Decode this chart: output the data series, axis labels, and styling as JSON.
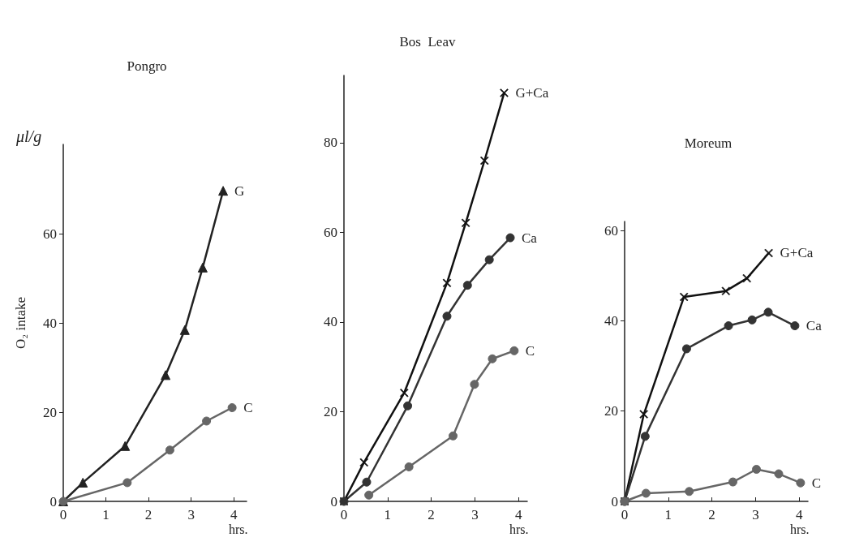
{
  "chart_data": [
    {
      "type": "line",
      "title": "Pongro",
      "xlabel": "hrs.",
      "ylabel": "O₂ intake",
      "annotations": [
        "μl/g"
      ],
      "xlim": [
        0,
        4.3
      ],
      "xticks": [
        0,
        1,
        2,
        3,
        4
      ],
      "ylim": [
        0,
        80
      ],
      "yticks": [
        0,
        20,
        40,
        60
      ],
      "grid": false,
      "legend": false,
      "series": [
        {
          "name": "G",
          "color": "#222222",
          "marker": "triangle",
          "x": [
            0,
            0.46,
            1.45,
            2.4,
            2.85,
            3.27,
            3.75
          ],
          "values": [
            0,
            4.2,
            12.4,
            28.3,
            38.4,
            52.4,
            69.6
          ]
        },
        {
          "name": "C",
          "color": "#666666",
          "marker": "circle",
          "x": [
            0,
            1.5,
            2.5,
            3.36,
            3.96
          ],
          "values": [
            0,
            4.2,
            11.5,
            18,
            21
          ]
        }
      ]
    },
    {
      "type": "line",
      "title": "Bos  Leav",
      "xlabel": "hrs.",
      "xlim": [
        0,
        4.2
      ],
      "xticks": [
        0,
        1,
        2,
        3,
        4
      ],
      "ylim": [
        0,
        95
      ],
      "yticks": [
        0,
        20,
        40,
        60,
        80
      ],
      "grid": false,
      "legend": false,
      "series": [
        {
          "name": "G+Ca",
          "color": "#111111",
          "marker": "cross",
          "x": [
            0,
            0.46,
            1.38,
            2.36,
            2.79,
            3.22,
            3.67
          ],
          "values": [
            0,
            8.7,
            24.2,
            48.7,
            62.1,
            76,
            91.1
          ]
        },
        {
          "name": "Ca",
          "color": "#333333",
          "marker": "circle",
          "x": [
            0,
            0.52,
            1.46,
            2.36,
            2.83,
            3.33,
            3.81
          ],
          "values": [
            0,
            4.3,
            21.3,
            41.3,
            48.2,
            53.9,
            58.8
          ]
        },
        {
          "name": "C",
          "color": "#666666",
          "marker": "circle",
          "x": [
            0.57,
            1.49,
            2.5,
            2.99,
            3.4,
            3.9
          ],
          "values": [
            1.4,
            7.7,
            14.6,
            26.1,
            31.8,
            33.6
          ]
        }
      ]
    },
    {
      "type": "line",
      "title": "Moreum",
      "xlabel": "hrs.",
      "xlim": [
        0,
        4.2
      ],
      "xticks": [
        0,
        1,
        2,
        3,
        4
      ],
      "ylim": [
        0,
        62
      ],
      "yticks": [
        0,
        20,
        40,
        60
      ],
      "grid": false,
      "legend": false,
      "series": [
        {
          "name": "G+Ca",
          "color": "#111111",
          "marker": "cross",
          "x": [
            0,
            0.44,
            1.36,
            2.32,
            2.8,
            3.3
          ],
          "values": [
            0,
            19.3,
            45.3,
            46.6,
            49.4,
            55
          ]
        },
        {
          "name": "Ca",
          "color": "#333333",
          "marker": "circle",
          "x": [
            0,
            0.47,
            1.42,
            2.38,
            2.92,
            3.29,
            3.9
          ],
          "values": [
            0,
            14.4,
            33.8,
            38.9,
            40.2,
            41.9,
            38.9
          ]
        },
        {
          "name": "C",
          "color": "#666666",
          "marker": "circle",
          "x": [
            0,
            0.49,
            1.48,
            2.48,
            3.02,
            3.53,
            4.03
          ],
          "values": [
            0,
            1.8,
            2.2,
            4.3,
            7.1,
            6.1,
            4.1
          ]
        }
      ]
    }
  ]
}
